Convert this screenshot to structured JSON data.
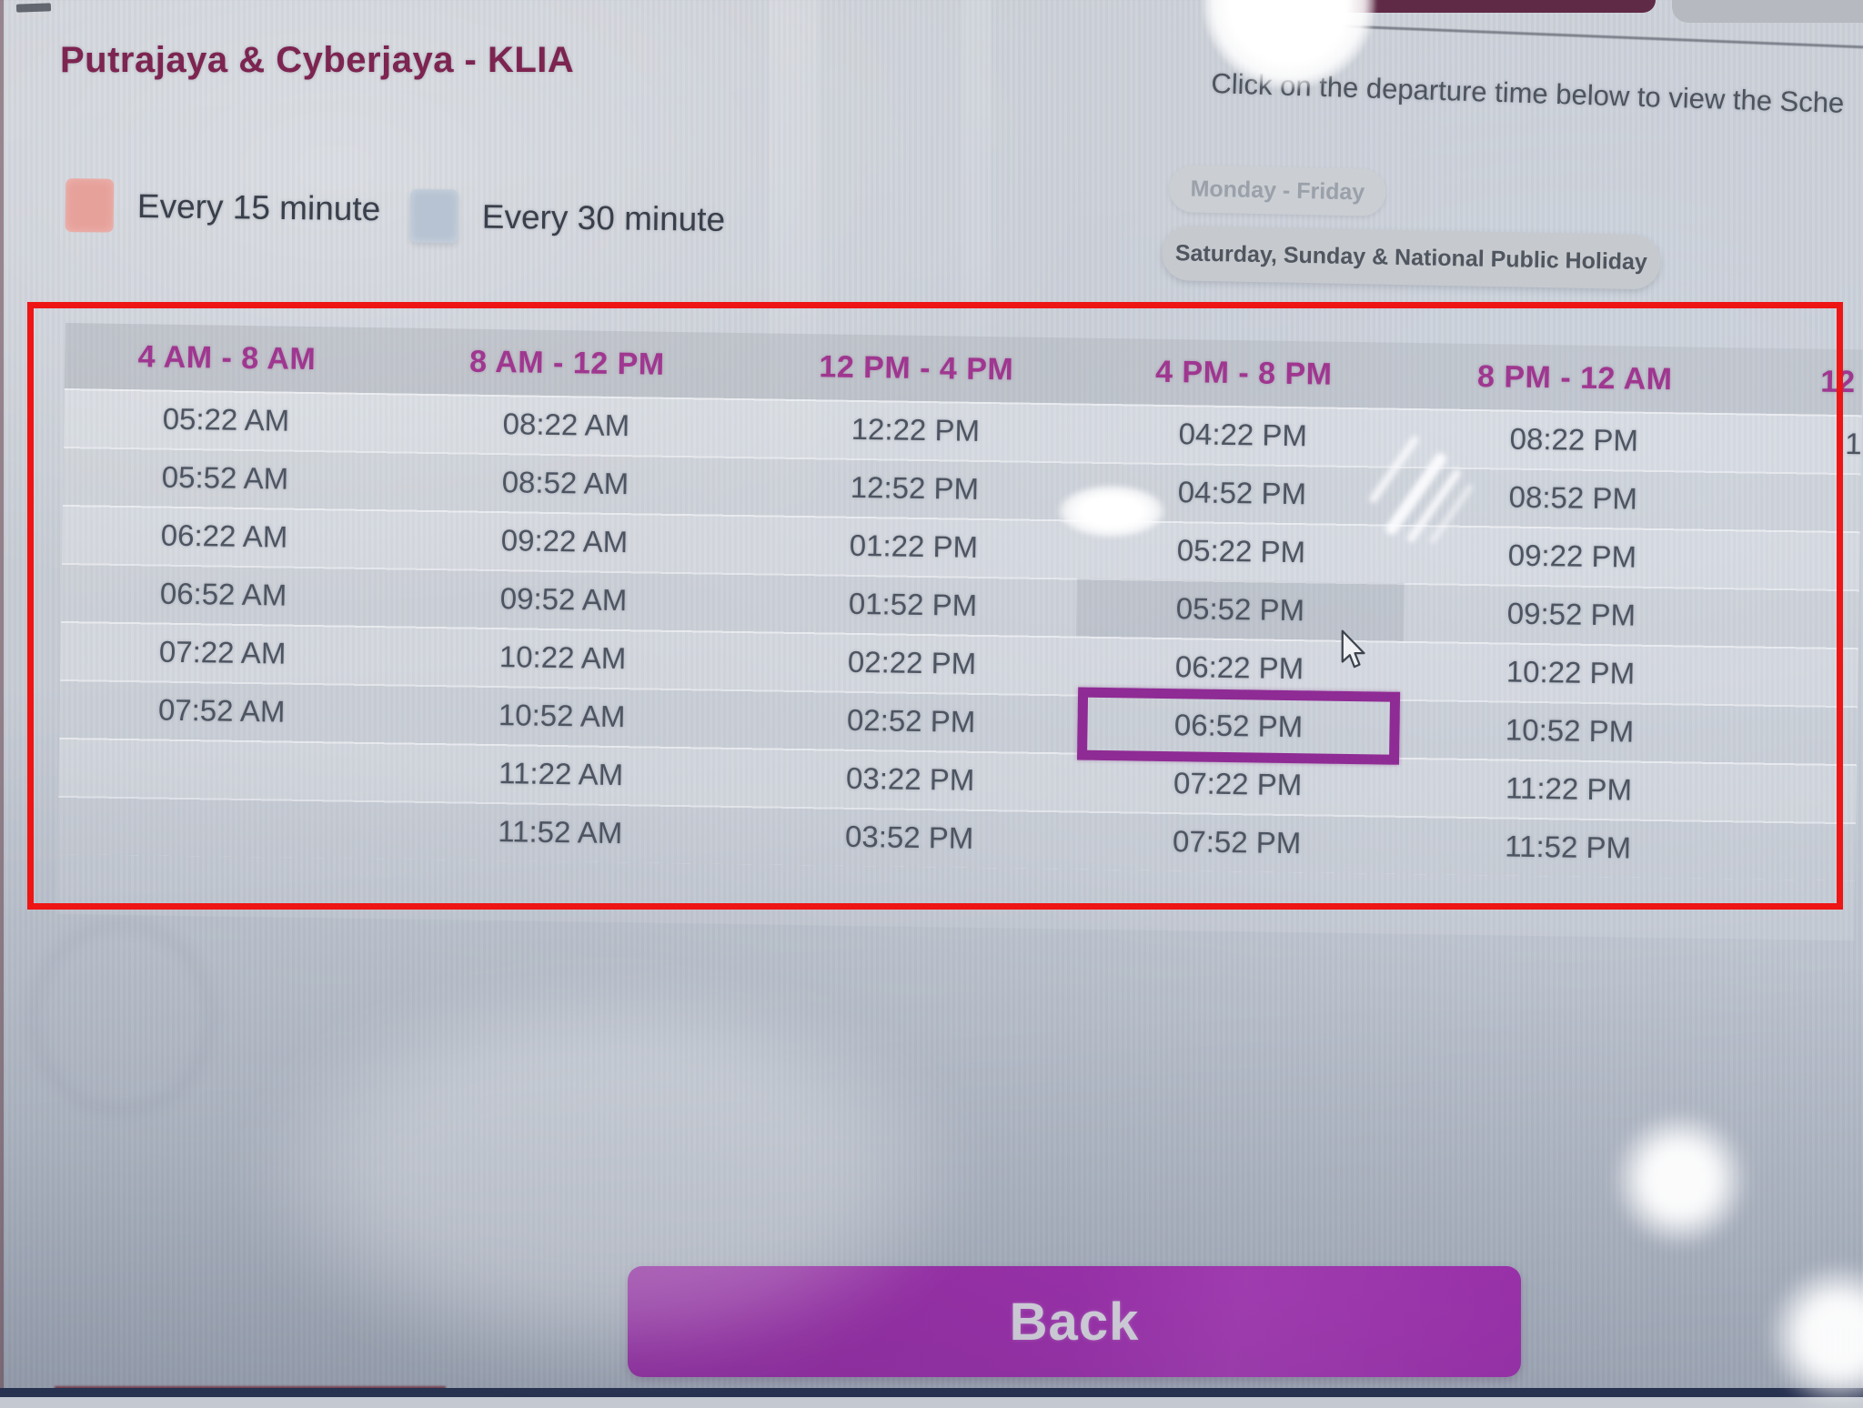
{
  "page": {
    "title": "Putrajaya & Cyberjaya - KLIA",
    "instruction": "Click on the departure time below to view the Sche",
    "back_label": "Back"
  },
  "legend": {
    "items": [
      {
        "label": "Every 15 minute",
        "color": "#e7a19b"
      },
      {
        "label": "Every 30 minute",
        "color": "#b7c3d2"
      }
    ]
  },
  "tabs": [
    {
      "label": "Monday - Friday",
      "state": "inactive"
    },
    {
      "label": "Saturday, Sunday & National Public Holiday",
      "state": "active"
    }
  ],
  "schedule": {
    "columns": [
      {
        "header": "4 AM - 8 AM",
        "times": [
          "05:22 AM",
          "05:52 AM",
          "06:22 AM",
          "06:52 AM",
          "07:22 AM",
          "07:52 AM"
        ]
      },
      {
        "header": "8 AM - 12 PM",
        "times": [
          "08:22 AM",
          "08:52 AM",
          "09:22 AM",
          "09:52 AM",
          "10:22 AM",
          "10:52 AM",
          "11:22 AM",
          "11:52 AM"
        ]
      },
      {
        "header": "12 PM - 4 PM",
        "times": [
          "12:22 PM",
          "12:52 PM",
          "01:22 PM",
          "01:52 PM",
          "02:22 PM",
          "02:52 PM",
          "03:22 PM",
          "03:52 PM"
        ]
      },
      {
        "header": "4 PM - 8 PM",
        "times": [
          "04:22 PM",
          "04:52 PM",
          "05:22 PM",
          "05:52 PM",
          "06:22 PM",
          "06:52 PM",
          "07:22 PM",
          "07:52 PM"
        ]
      },
      {
        "header": "8 PM - 12 AM",
        "times": [
          "08:22 PM",
          "08:52 PM",
          "09:22 PM",
          "09:52 PM",
          "10:22 PM",
          "10:52 PM",
          "11:22 PM",
          "11:52 PM"
        ]
      }
    ],
    "clipped_column": {
      "header_partial": "12",
      "first_time_partial": "1"
    },
    "selected_time": "06:52 PM",
    "shaded_time": "05:52 PM"
  },
  "colors": {
    "title_text": "#7d2451",
    "column_header_text": "#9f3790",
    "time_text": "#4e5562",
    "annotation_red": "#ee1515",
    "selection_border": "#8f2b94",
    "back_button": "#a32cb1",
    "legend_15": "#e7a19b",
    "legend_30": "#b7c3d2"
  }
}
